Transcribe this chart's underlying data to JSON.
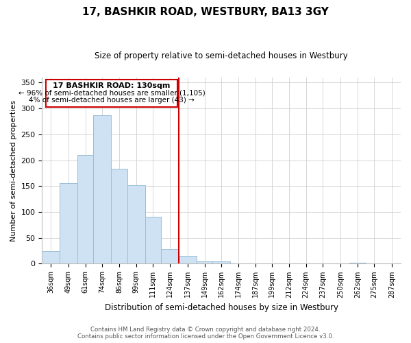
{
  "title": "17, BASHKIR ROAD, WESTBURY, BA13 3GY",
  "subtitle": "Size of property relative to semi-detached houses in Westbury",
  "xlabel": "Distribution of semi-detached houses by size in Westbury",
  "ylabel": "Number of semi-detached properties",
  "bin_labels": [
    "36sqm",
    "49sqm",
    "61sqm",
    "74sqm",
    "86sqm",
    "99sqm",
    "111sqm",
    "124sqm",
    "137sqm",
    "149sqm",
    "162sqm",
    "174sqm",
    "187sqm",
    "199sqm",
    "212sqm",
    "224sqm",
    "237sqm",
    "250sqm",
    "262sqm",
    "275sqm",
    "287sqm"
  ],
  "bar_heights": [
    25,
    155,
    210,
    287,
    184,
    152,
    91,
    28,
    15,
    5,
    4,
    0,
    0,
    0,
    0,
    0,
    0,
    0,
    2,
    0,
    0
  ],
  "bar_color": "#cfe2f3",
  "bar_edge_color": "#9bbfd8",
  "vline_color": "#cc0000",
  "annotation_title": "17 BASHKIR ROAD: 130sqm",
  "annotation_line1": "← 96% of semi-detached houses are smaller (1,105)",
  "annotation_line2": "4% of semi-detached houses are larger (43) →",
  "annotation_box_color": "#ffffff",
  "annotation_box_edge": "#cc0000",
  "ylim": [
    0,
    360
  ],
  "footer1": "Contains HM Land Registry data © Crown copyright and database right 2024.",
  "footer2": "Contains public sector information licensed under the Open Government Licence v3.0.",
  "bin_edges": [
    29.5,
    42.5,
    55.5,
    67.5,
    80.5,
    92.5,
    105.5,
    117.5,
    130.5,
    143.5,
    155.5,
    168.5,
    180.5,
    193.5,
    205.5,
    218.5,
    230.5,
    243.5,
    256.5,
    268.5,
    281.5,
    294.5
  ],
  "vline_bin_edge_idx": 8
}
